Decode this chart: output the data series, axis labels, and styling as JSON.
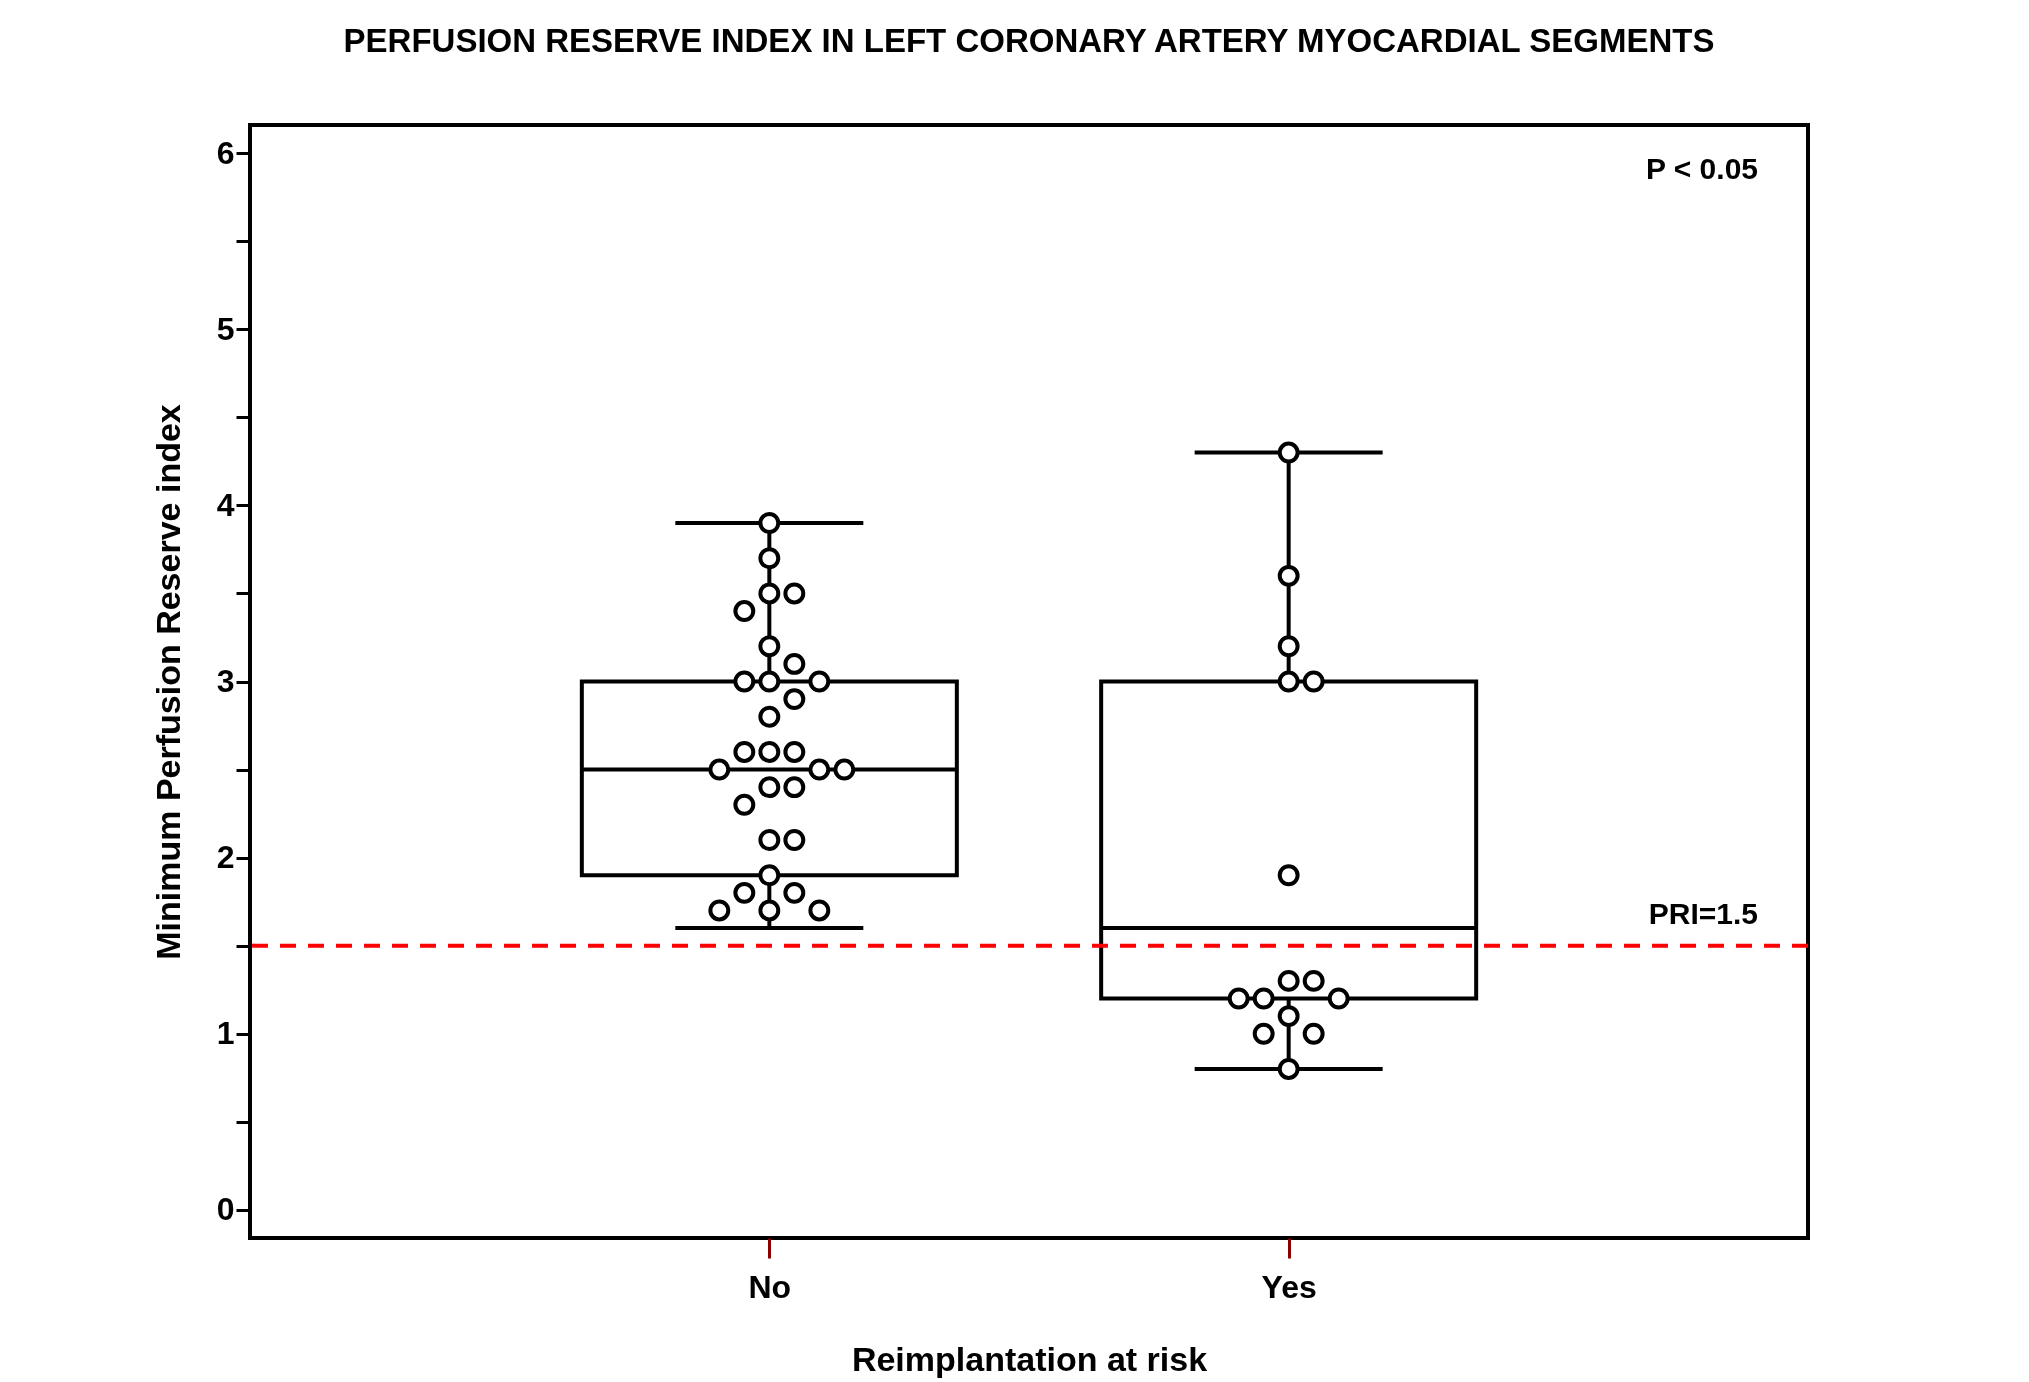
{
  "chart_data": {
    "type": "box",
    "title": "PERFUSION  RESERVE INDEX IN  LEFT CORONARY  ARTERY  MYOCARDIAL  SEGMENTS",
    "xlabel": "Reimplantation  at risk",
    "ylabel": "Minimum  Perfusion  Reserve index",
    "categories": [
      "No",
      "Yes"
    ],
    "ylim": [
      -0.16,
      6.16
    ],
    "yticks": [
      0,
      {
        "value": 0.5,
        "label": null
      },
      1,
      {
        "value": 1.5,
        "label": null
      },
      2,
      {
        "value": 2.5,
        "label": null
      },
      3,
      {
        "value": 3.5,
        "label": null
      },
      4,
      {
        "value": 4.5,
        "label": null
      },
      5,
      {
        "value": 5.5,
        "label": null
      },
      6
    ],
    "grid": false,
    "marker": "circle",
    "series": [
      {
        "color": "#000000",
        "boxes": [
          {
            "low": 1.6,
            "q1": 1.9,
            "median": 2.5,
            "q3": 3.0,
            "high": 3.9
          },
          {
            "low": 0.8,
            "q1": 1.2,
            "median": 1.6,
            "q3": 3.0,
            "high": 4.3
          }
        ]
      },
      {
        "type": "scatter",
        "color": "#000000",
        "x": [
          "No",
          "No",
          "No",
          "No",
          "No",
          "No",
          "No",
          "No",
          "No",
          "No",
          "No",
          "No",
          "No",
          "No",
          "No",
          "No",
          "No",
          "No",
          "No",
          "No",
          "No",
          "No",
          "No",
          "No",
          "No",
          "No",
          "No",
          "No",
          "No",
          "Yes",
          "Yes",
          "Yes",
          "Yes",
          "Yes",
          "Yes",
          "Yes",
          "Yes",
          "Yes",
          "Yes",
          "Yes",
          "Yes",
          "Yes",
          "Yes",
          "Yes"
        ],
        "values": [
          3.9,
          3.7,
          3.5,
          3.5,
          3.4,
          3.2,
          3.1,
          3.0,
          3.0,
          3.0,
          2.9,
          2.8,
          2.6,
          2.6,
          2.6,
          2.5,
          2.5,
          2.5,
          2.4,
          2.4,
          2.3,
          2.1,
          2.1,
          1.9,
          1.8,
          1.8,
          1.7,
          1.7,
          1.7,
          4.3,
          3.6,
          3.2,
          3.0,
          3.0,
          1.9,
          1.3,
          1.3,
          1.2,
          1.2,
          1.2,
          1.1,
          1.0,
          1.0,
          0.8
        ]
      }
    ],
    "ref_lines": [
      {
        "axis": "y",
        "value": 1.5,
        "label": "PRI=1.5",
        "color": "#ff0000",
        "line_style": "dashed"
      }
    ],
    "annotations": [
      "P < 0.05"
    ]
  }
}
